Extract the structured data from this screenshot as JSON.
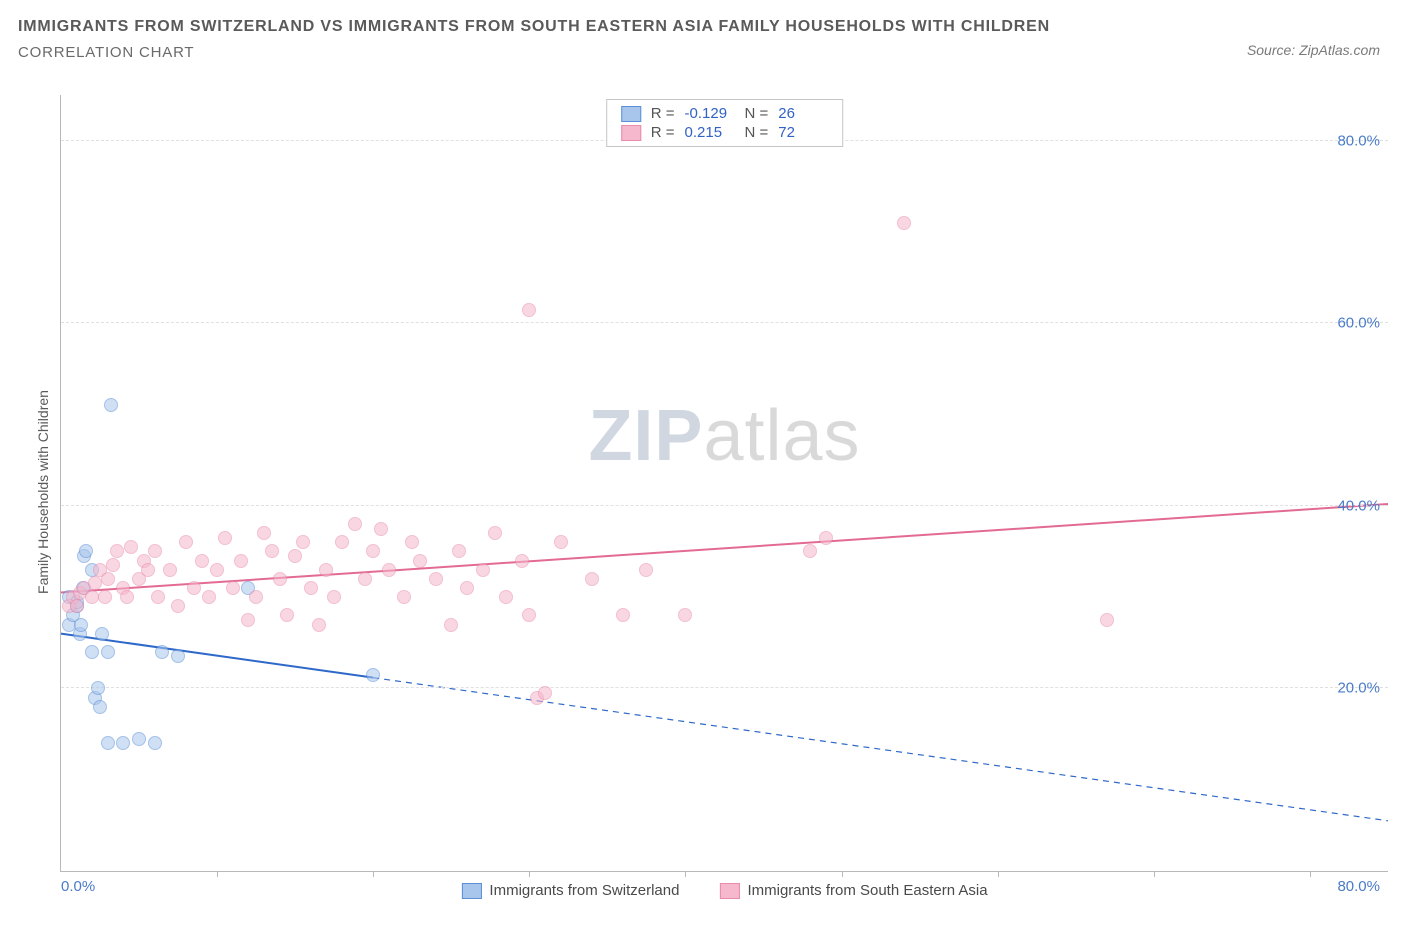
{
  "header": {
    "title": "IMMIGRANTS FROM SWITZERLAND VS IMMIGRANTS FROM SOUTH EASTERN ASIA FAMILY HOUSEHOLDS WITH CHILDREN",
    "subtitle": "CORRELATION CHART",
    "source_prefix": "Source: ",
    "source_name": "ZipAtlas.com"
  },
  "chart": {
    "type": "scatter",
    "y_label": "Family Households with Children",
    "xlim": [
      0,
      85
    ],
    "ylim": [
      0,
      85
    ],
    "x_origin_label": "0.0%",
    "x_end_label": "80.0%",
    "y_ticks": [
      {
        "v": 20,
        "label": "20.0%"
      },
      {
        "v": 40,
        "label": "40.0%"
      },
      {
        "v": 60,
        "label": "60.0%"
      },
      {
        "v": 80,
        "label": "80.0%"
      }
    ],
    "x_tick_positions": [
      10,
      20,
      30,
      40,
      50,
      60,
      70,
      80
    ],
    "grid_color": "#e0e0e0",
    "axis_color": "#b8b8b8",
    "background_color": "#ffffff",
    "tick_label_color": "#4a7bc8",
    "point_radius": 7,
    "point_opacity": 0.55,
    "series": [
      {
        "name": "Immigrants from Switzerland",
        "color_fill": "#a8c5ec",
        "color_stroke": "#5b8fd6",
        "R": "-0.129",
        "N": "26",
        "trend": {
          "x1": 0,
          "y1": 26,
          "x2": 85,
          "y2": 5.5,
          "solid_until_x": 20,
          "color": "#2e68c9",
          "width": 2
        },
        "points": [
          [
            0.5,
            27
          ],
          [
            0.5,
            30
          ],
          [
            0.8,
            28
          ],
          [
            1,
            29
          ],
          [
            1,
            29.5
          ],
          [
            1.2,
            26
          ],
          [
            1.3,
            27
          ],
          [
            1.4,
            31
          ],
          [
            1.5,
            34.5
          ],
          [
            1.6,
            35
          ],
          [
            2,
            33
          ],
          [
            2,
            24
          ],
          [
            2.2,
            19
          ],
          [
            2.4,
            20
          ],
          [
            2.5,
            18
          ],
          [
            2.6,
            26
          ],
          [
            3,
            14
          ],
          [
            3,
            24
          ],
          [
            3.2,
            51
          ],
          [
            4,
            14
          ],
          [
            5,
            14.5
          ],
          [
            6,
            14
          ],
          [
            6.5,
            24
          ],
          [
            7.5,
            23.5
          ],
          [
            12,
            31
          ],
          [
            20,
            21.5
          ]
        ]
      },
      {
        "name": "Immigrants from South Eastern Asia",
        "color_fill": "#f5b8cc",
        "color_stroke": "#e98bab",
        "R": "0.215",
        "N": "72",
        "trend": {
          "x1": 0,
          "y1": 30.5,
          "x2": 85,
          "y2": 40.2,
          "solid_until_x": 85,
          "color": "#e26a94",
          "width": 2
        },
        "points": [
          [
            0.5,
            29
          ],
          [
            0.8,
            30
          ],
          [
            1,
            29
          ],
          [
            1.2,
            30.5
          ],
          [
            1.5,
            31
          ],
          [
            2,
            30
          ],
          [
            2.2,
            31.5
          ],
          [
            2.5,
            33
          ],
          [
            2.8,
            30
          ],
          [
            3,
            32
          ],
          [
            3.3,
            33.5
          ],
          [
            3.6,
            35
          ],
          [
            4,
            31
          ],
          [
            4.2,
            30
          ],
          [
            4.5,
            35.5
          ],
          [
            5,
            32
          ],
          [
            5.3,
            34
          ],
          [
            5.6,
            33
          ],
          [
            6,
            35
          ],
          [
            6.2,
            30
          ],
          [
            7,
            33
          ],
          [
            7.5,
            29
          ],
          [
            8,
            36
          ],
          [
            8.5,
            31
          ],
          [
            9,
            34
          ],
          [
            9.5,
            30
          ],
          [
            10,
            33
          ],
          [
            10.5,
            36.5
          ],
          [
            11,
            31
          ],
          [
            11.5,
            34
          ],
          [
            12,
            27.5
          ],
          [
            12.5,
            30
          ],
          [
            13,
            37
          ],
          [
            13.5,
            35
          ],
          [
            14,
            32
          ],
          [
            14.5,
            28
          ],
          [
            15,
            34.5
          ],
          [
            15.5,
            36
          ],
          [
            16,
            31
          ],
          [
            16.5,
            27
          ],
          [
            17,
            33
          ],
          [
            17.5,
            30
          ],
          [
            18,
            36
          ],
          [
            18.8,
            38
          ],
          [
            19.5,
            32
          ],
          [
            20,
            35
          ],
          [
            20.5,
            37.5
          ],
          [
            21,
            33
          ],
          [
            22,
            30
          ],
          [
            22.5,
            36
          ],
          [
            23,
            34
          ],
          [
            24,
            32
          ],
          [
            25,
            27
          ],
          [
            25.5,
            35
          ],
          [
            26,
            31
          ],
          [
            27,
            33
          ],
          [
            27.8,
            37
          ],
          [
            28.5,
            30
          ],
          [
            29.5,
            34
          ],
          [
            30,
            28
          ],
          [
            30,
            61.5
          ],
          [
            30.5,
            19
          ],
          [
            31,
            19.5
          ],
          [
            32,
            36
          ],
          [
            34,
            32
          ],
          [
            36,
            28
          ],
          [
            37.5,
            33
          ],
          [
            40,
            28
          ],
          [
            49,
            36.5
          ],
          [
            54,
            71
          ],
          [
            67,
            27.5
          ],
          [
            48,
            35
          ]
        ]
      }
    ]
  },
  "watermark": {
    "part1": "ZIP",
    "part2": "atlas"
  }
}
